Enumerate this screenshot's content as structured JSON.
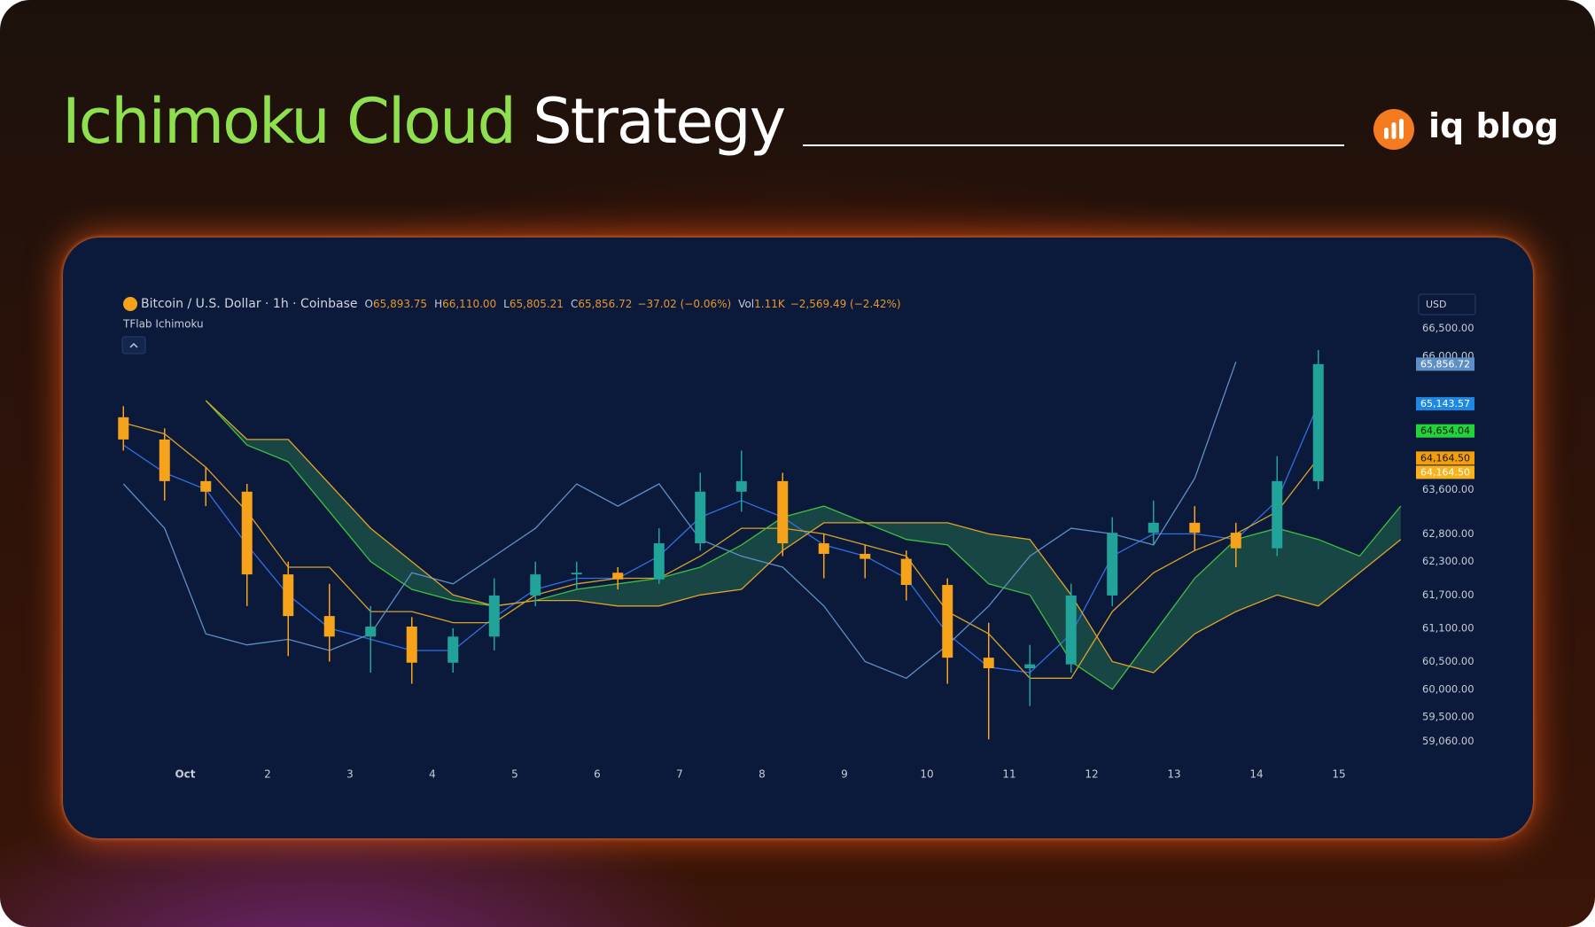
{
  "header": {
    "title_green": "Ichimoku Cloud",
    "title_white": "Strategy",
    "brand": "iq blog"
  },
  "chart_data": {
    "type": "candlestick",
    "symbol": "Bitcoin / U.S. Dollar · 1h · Coinbase",
    "fields": [
      {
        "label": "O",
        "value": "65,893.75"
      },
      {
        "label": "H",
        "value": "66,110.00"
      },
      {
        "label": "L",
        "value": "65,805.21"
      },
      {
        "label": "C",
        "value": "65,856.72"
      },
      {
        "value": "−37.02 (−0.06%)"
      },
      {
        "label": "Vol",
        "value": "1.11K"
      },
      {
        "value": "−2,569.49 (−2.42%)"
      }
    ],
    "indicator": "TFlab Ichimoku",
    "currency": "USD",
    "x": [
      0.25,
      0.75,
      1.25,
      1.75,
      2.25,
      2.75,
      3.25,
      3.75,
      4.25,
      4.75,
      5.25,
      5.75,
      6.25,
      6.75,
      7.25,
      7.75,
      8.25,
      8.75,
      9.25,
      9.75,
      10.25,
      10.75,
      11.25,
      11.75,
      12.25,
      12.75,
      13.25,
      13.75,
      14.25,
      14.75,
      15.25,
      15.75
    ],
    "open": [
      64900,
      64500,
      63750,
      63560,
      62070,
      61320,
      60950,
      61130,
      60480,
      60950,
      61690,
      62070,
      62100,
      61980,
      62630,
      63560,
      63750,
      62630,
      62440,
      62350,
      61880,
      60570,
      60380,
      60450,
      61690,
      62820,
      63000,
      62820,
      62540,
      63750,
      null,
      null
    ],
    "high": [
      65100,
      64700,
      64000,
      63700,
      62300,
      61900,
      61500,
      61300,
      61100,
      62000,
      62300,
      62300,
      62200,
      62900,
      63900,
      64300,
      63900,
      62800,
      62600,
      62500,
      62000,
      61200,
      60800,
      61900,
      63100,
      63400,
      63300,
      63000,
      64200,
      66110,
      null,
      null
    ],
    "low": [
      64300,
      63400,
      63300,
      61500,
      60600,
      60500,
      60300,
      60100,
      60300,
      60700,
      61500,
      61800,
      61800,
      61900,
      62500,
      63200,
      62400,
      62000,
      62000,
      61600,
      60100,
      59100,
      59700,
      60300,
      61500,
      62600,
      62500,
      62200,
      62400,
      63600,
      null,
      null
    ],
    "close": [
      64500,
      63750,
      63560,
      62070,
      61320,
      60950,
      61130,
      60480,
      60950,
      61690,
      62070,
      62100,
      61980,
      62630,
      63560,
      63750,
      62630,
      62440,
      62350,
      61880,
      60570,
      60380,
      60450,
      61690,
      62820,
      63000,
      62820,
      62540,
      63750,
      65856.72,
      null,
      null
    ],
    "up_color": "#22a39a",
    "down_color": "#f7a21b",
    "lines": [
      {
        "color": "#2f6fe0",
        "values": [
          64400,
          63900,
          63600,
          62600,
          61700,
          61100,
          60900,
          60700,
          60700,
          61300,
          61800,
          62000,
          62000,
          62400,
          63100,
          63400,
          63100,
          62600,
          62400,
          62000,
          61000,
          60400,
          60300,
          61000,
          62400,
          62800,
          62800,
          62700,
          63400,
          65143.57,
          null,
          null
        ]
      },
      {
        "color": "#d9a328",
        "values": [
          64800,
          64600,
          64000,
          63200,
          62200,
          62200,
          61400,
          61400,
          61200,
          61200,
          61700,
          61900,
          62000,
          62000,
          62400,
          62900,
          62900,
          62800,
          62600,
          62400,
          61400,
          61000,
          60200,
          60200,
          61400,
          62100,
          62500,
          62800,
          63200,
          64164.5,
          null,
          null
        ]
      },
      {
        "color": "#5f8fc4",
        "values": [
          63700,
          62900,
          61000,
          60800,
          60900,
          60700,
          61000,
          62100,
          61900,
          62400,
          62900,
          63700,
          63300,
          63700,
          62700,
          62400,
          62200,
          61500,
          60500,
          60200,
          60800,
          61500,
          62400,
          62900,
          62800,
          62600,
          63800,
          65900,
          null,
          null,
          null,
          null
        ]
      },
      {
        "color": "#3fbf3f",
        "values": [
          null,
          null,
          65200,
          64400,
          64100,
          63200,
          62300,
          61800,
          61600,
          61500,
          61600,
          61800,
          61900,
          62000,
          62200,
          62600,
          63100,
          63300,
          63000,
          62700,
          62600,
          61900,
          61700,
          60500,
          60000,
          61000,
          62000,
          62700,
          62900,
          62700,
          62400,
          63300
        ]
      },
      {
        "color": "#e0a32a",
        "values": [
          null,
          null,
          65200,
          64500,
          64500,
          63700,
          62900,
          62300,
          61700,
          61500,
          61600,
          61600,
          61500,
          61500,
          61700,
          61800,
          62500,
          63000,
          63000,
          63000,
          63000,
          62800,
          62700,
          61700,
          60500,
          60300,
          61000,
          61400,
          61700,
          61500,
          62100,
          62700
        ]
      }
    ],
    "cloud_color": "#1d5a4a",
    "xlim": [
      0,
      16
    ],
    "xticks": [
      {
        "value": 1,
        "label": "Oct"
      },
      2,
      3,
      4,
      5,
      6,
      7,
      8,
      9,
      10,
      11,
      12,
      13,
      14,
      15
    ],
    "ylim": [
      58800,
      67100
    ],
    "yticks": [
      {
        "value": 66500,
        "label": "66,500.00"
      },
      {
        "value": 66000,
        "label": "66,000.00"
      },
      {
        "value": 63600,
        "label": "63,600.00"
      },
      {
        "value": 62800,
        "label": "62,800.00"
      },
      {
        "value": 62300,
        "label": "62,300.00"
      },
      {
        "value": 61700,
        "label": "61,700.00"
      },
      {
        "value": 61100,
        "label": "61,100.00"
      },
      {
        "value": 60500,
        "label": "60,500.00"
      },
      {
        "value": 60000,
        "label": "60,000.00"
      },
      {
        "value": 59500,
        "label": "59,500.00"
      },
      {
        "value": 59060,
        "label": "59,060.00"
      }
    ],
    "price_tags": [
      {
        "value": 65856.72,
        "label": "65,856.72",
        "color": "#5d8fc4"
      },
      {
        "value": 65143.57,
        "label": "65,143.57",
        "color": "#1e88e5"
      },
      {
        "value": 64654.04,
        "label": "64,654.04",
        "color": "#22d33a"
      },
      {
        "value": 64164.5,
        "label": "64,164.50",
        "color": "#f59e0b"
      },
      {
        "value": 64164.5,
        "label": "64,164.50",
        "color": "#f7b21c"
      }
    ]
  }
}
